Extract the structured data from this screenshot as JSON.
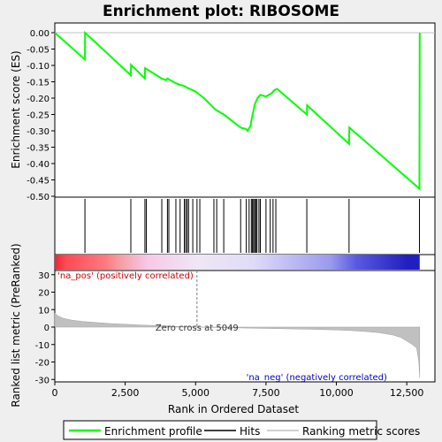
{
  "chart_data": [
    {
      "type": "line",
      "title": "Enrichment plot: RIBOSOME",
      "ylabel": "Enrichment score (ES)",
      "xlim": [
        0,
        13500
      ],
      "ylim": [
        -0.5,
        0.03
      ],
      "yticks": [
        0.0,
        -0.05,
        -0.1,
        -0.15,
        -0.2,
        -0.25,
        -0.3,
        -0.35,
        -0.4,
        -0.45,
        -0.5
      ],
      "ytick_labels": [
        "0.00",
        "-0.05",
        "-0.10",
        "-0.15",
        "-0.20",
        "-0.25",
        "-0.30",
        "-0.35",
        "-0.40",
        "-0.45",
        "-0.50"
      ],
      "grid": "horizontal line at 0",
      "series": [
        {
          "name": "Enrichment profile",
          "color": "#00ff00",
          "x": [
            0,
            1070,
            1075,
            2700,
            2705,
            3200,
            3205,
            3800,
            3950,
            4000,
            4200,
            4400,
            4600,
            4700,
            5000,
            5300,
            5700,
            6000,
            6600,
            6800,
            6850,
            6950,
            7000,
            7050,
            7100,
            7200,
            7300,
            7500,
            7600,
            7700,
            7800,
            7900,
            8950,
            8960,
            10450,
            10460,
            12950,
            12960
          ],
          "y": [
            0.0,
            -0.082,
            0.0,
            -0.13,
            -0.098,
            -0.14,
            -0.108,
            -0.14,
            -0.145,
            -0.14,
            -0.15,
            -0.158,
            -0.163,
            -0.168,
            -0.18,
            -0.2,
            -0.235,
            -0.25,
            -0.29,
            -0.295,
            -0.3,
            -0.285,
            -0.26,
            -0.24,
            -0.22,
            -0.2,
            -0.19,
            -0.195,
            -0.19,
            -0.185,
            -0.175,
            -0.172,
            -0.25,
            -0.222,
            -0.34,
            -0.29,
            -0.477,
            0.0
          ]
        }
      ]
    },
    {
      "type": "scatter",
      "series": [
        {
          "name": "Hits",
          "color": "#000000",
          "x": [
            1070,
            2700,
            3200,
            3250,
            3800,
            4000,
            4050,
            4300,
            4450,
            4600,
            4650,
            4700,
            4750,
            4900,
            5050,
            5150,
            5650,
            5750,
            6000,
            6600,
            6800,
            6900,
            6980,
            7020,
            7060,
            7100,
            7140,
            7180,
            7250,
            7300,
            7500,
            7650,
            7750,
            7850,
            8950,
            10450,
            12950
          ]
        }
      ]
    },
    {
      "type": "area",
      "xlabel": "Rank in Ordered Dataset",
      "ylabel": "Ranked list metric (PreRanked)",
      "xlim": [
        0,
        13500
      ],
      "ylim": [
        -32,
        32
      ],
      "xticks": [
        0,
        2500,
        5000,
        7500,
        10000,
        12500
      ],
      "xtick_labels": [
        "0",
        "2,500",
        "5,000",
        "7,500",
        "10,000",
        "12,500"
      ],
      "yticks": [
        30,
        20,
        10,
        0,
        -10,
        -20,
        -30
      ],
      "ytick_labels": [
        "30",
        "20",
        "10",
        "0",
        "-10",
        "-20",
        "-30"
      ],
      "series": [
        {
          "name": "Ranking metric scores",
          "color": "#c0c0c0",
          "x": [
            0,
            100,
            300,
            600,
            1000,
            1500,
            2000,
            2500,
            3000,
            3500,
            4000,
            4500,
            5049,
            6000,
            7000,
            8000,
            9000,
            10000,
            10500,
            11000,
            11500,
            12000,
            12300,
            12500,
            12700,
            12850,
            12930,
            12960
          ],
          "y": [
            8,
            6.5,
            5,
            4,
            3.2,
            2.6,
            2.0,
            1.6,
            1.2,
            0.9,
            0.6,
            0.3,
            0,
            -0.3,
            -0.6,
            -0.9,
            -1.2,
            -1.6,
            -2.0,
            -2.5,
            -3.2,
            -4.5,
            -6,
            -8,
            -10,
            -12,
            -20,
            -29
          ]
        }
      ],
      "annotations": [
        {
          "text": "'na_pos' (positively correlated)",
          "color": "#cc0000",
          "x": 100
        },
        {
          "text": "Zero cross at 5049",
          "color": "#333333",
          "x": 5049
        },
        {
          "text": "'na_neg' (negatively correlated)",
          "color": "#0000cc",
          "x": 6800
        }
      ]
    }
  ],
  "legend": {
    "items": [
      {
        "label": "Enrichment profile",
        "color": "#00ff00"
      },
      {
        "label": "Hits",
        "color": "#000000"
      },
      {
        "label": "Ranking metric scores",
        "color": "#c0c0c0"
      }
    ]
  },
  "gradient_bar": {
    "stops": [
      {
        "rank": 0,
        "color": "#e8283a"
      },
      {
        "rank": 400,
        "color": "#ff4a55"
      },
      {
        "rank": 1800,
        "color": "#ff7a80"
      },
      {
        "rank": 2400,
        "color": "#f4a2a8"
      },
      {
        "rank": 3300,
        "color": "#f8c8e8"
      },
      {
        "rank": 5049,
        "color": "#f0e6f6"
      },
      {
        "rank": 7000,
        "color": "#e0dcf8"
      },
      {
        "rank": 8000,
        "color": "#c8c4f6"
      },
      {
        "rank": 9800,
        "color": "#9a9aee"
      },
      {
        "rank": 10700,
        "color": "#5a5ae0"
      },
      {
        "rank": 12500,
        "color": "#2020c0"
      },
      {
        "rank": 12960,
        "color": "#2020c0"
      }
    ]
  }
}
